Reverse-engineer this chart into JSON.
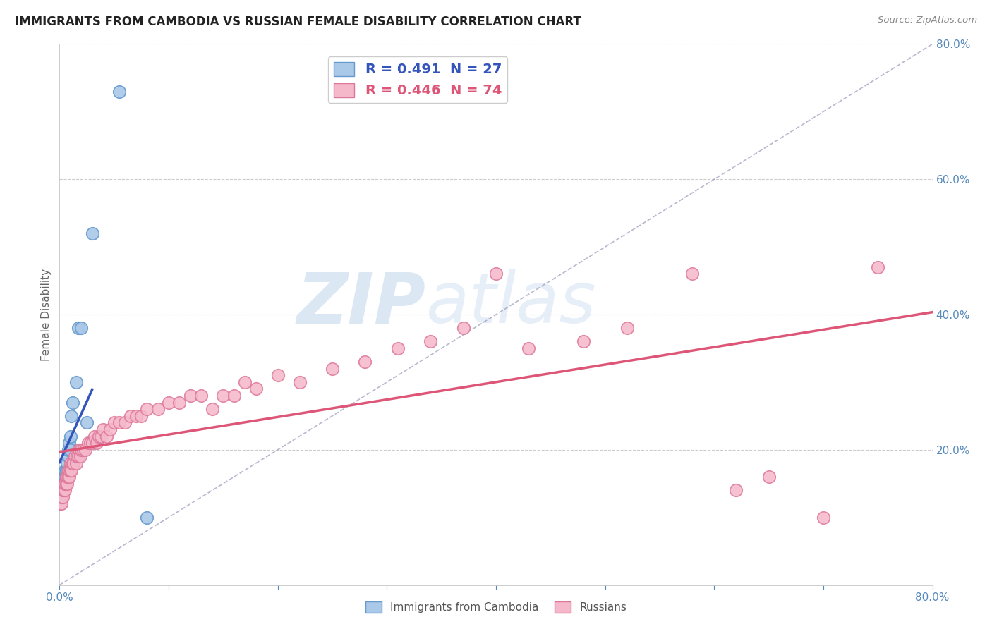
{
  "title": "IMMIGRANTS FROM CAMBODIA VS RUSSIAN FEMALE DISABILITY CORRELATION CHART",
  "source": "Source: ZipAtlas.com",
  "ylabel": "Female Disability",
  "watermark": "ZIPatlas",
  "legend_labels": [
    "R = 0.491  N = 27",
    "R = 0.446  N = 74"
  ],
  "xlim": [
    0.0,
    0.8
  ],
  "ylim": [
    0.0,
    0.8
  ],
  "background_color": "#ffffff",
  "grid_color": "#cccccc",
  "scatter_color_cambodia": "#aac8e8",
  "scatter_edge_cambodia": "#6699cc",
  "scatter_color_russian": "#f5b8cb",
  "scatter_edge_russian": "#dd7799",
  "line_color_cambodia": "#3355bb",
  "line_color_russian": "#dd5577",
  "diagonal_color": "#9999bb",
  "axis_tick_color": "#5588bb",
  "title_fontsize": 12,
  "cambodia_x": [
    0.001,
    0.002,
    0.003,
    0.003,
    0.004,
    0.004,
    0.005,
    0.005,
    0.005,
    0.006,
    0.006,
    0.007,
    0.007,
    0.008,
    0.008,
    0.009,
    0.01,
    0.01,
    0.011,
    0.012,
    0.015,
    0.017,
    0.02,
    0.025,
    0.03,
    0.055,
    0.08
  ],
  "cambodia_y": [
    0.13,
    0.14,
    0.14,
    0.15,
    0.15,
    0.16,
    0.15,
    0.16,
    0.17,
    0.16,
    0.17,
    0.17,
    0.18,
    0.19,
    0.2,
    0.21,
    0.2,
    0.22,
    0.25,
    0.27,
    0.3,
    0.38,
    0.38,
    0.24,
    0.52,
    0.73,
    0.1
  ],
  "russian_x": [
    0.001,
    0.002,
    0.002,
    0.003,
    0.003,
    0.004,
    0.004,
    0.005,
    0.005,
    0.006,
    0.006,
    0.007,
    0.007,
    0.008,
    0.008,
    0.009,
    0.009,
    0.01,
    0.01,
    0.011,
    0.012,
    0.013,
    0.014,
    0.015,
    0.016,
    0.017,
    0.018,
    0.019,
    0.02,
    0.022,
    0.024,
    0.026,
    0.028,
    0.03,
    0.032,
    0.034,
    0.036,
    0.038,
    0.04,
    0.043,
    0.046,
    0.05,
    0.055,
    0.06,
    0.065,
    0.07,
    0.075,
    0.08,
    0.09,
    0.1,
    0.11,
    0.12,
    0.13,
    0.14,
    0.15,
    0.16,
    0.17,
    0.18,
    0.2,
    0.22,
    0.25,
    0.28,
    0.31,
    0.34,
    0.37,
    0.4,
    0.43,
    0.48,
    0.52,
    0.58,
    0.62,
    0.65,
    0.7,
    0.75
  ],
  "russian_y": [
    0.12,
    0.12,
    0.13,
    0.13,
    0.14,
    0.14,
    0.15,
    0.14,
    0.15,
    0.15,
    0.16,
    0.15,
    0.16,
    0.16,
    0.17,
    0.16,
    0.17,
    0.17,
    0.18,
    0.17,
    0.18,
    0.18,
    0.19,
    0.18,
    0.19,
    0.19,
    0.2,
    0.19,
    0.2,
    0.2,
    0.2,
    0.21,
    0.21,
    0.21,
    0.22,
    0.21,
    0.22,
    0.22,
    0.23,
    0.22,
    0.23,
    0.24,
    0.24,
    0.24,
    0.25,
    0.25,
    0.25,
    0.26,
    0.26,
    0.27,
    0.27,
    0.28,
    0.28,
    0.26,
    0.28,
    0.28,
    0.3,
    0.29,
    0.31,
    0.3,
    0.32,
    0.33,
    0.35,
    0.36,
    0.38,
    0.46,
    0.35,
    0.36,
    0.38,
    0.46,
    0.14,
    0.16,
    0.1,
    0.47
  ]
}
